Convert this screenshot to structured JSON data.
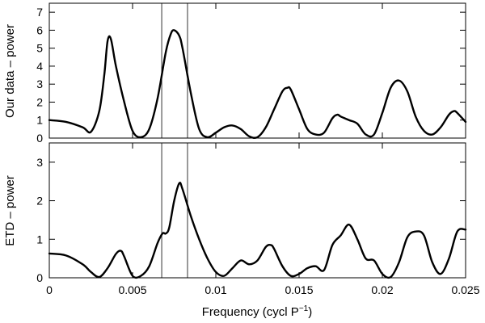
{
  "chart_data": [
    {
      "type": "line",
      "ylabel": "Our data – power",
      "xlim": [
        0,
        0.025
      ],
      "ylim": [
        0,
        7.5
      ],
      "yticks": [
        0,
        1,
        2,
        3,
        4,
        5,
        6,
        7
      ],
      "xticks": [
        0,
        0.005,
        0.01,
        0.015,
        0.02,
        0.025
      ],
      "vertical_lines": [
        0.00675,
        0.0083
      ],
      "grid": false,
      "series": [
        {
          "x": [
            0,
            0.001,
            0.002,
            0.0025,
            0.003,
            0.0033,
            0.0035,
            0.0037,
            0.004,
            0.0045,
            0.005,
            0.0055,
            0.006,
            0.0065,
            0.007,
            0.0073,
            0.0075,
            0.0078,
            0.008,
            0.0085,
            0.009,
            0.0095,
            0.01,
            0.0105,
            0.011,
            0.0115,
            0.012,
            0.0125,
            0.013,
            0.0135,
            0.014,
            0.0143,
            0.0145,
            0.015,
            0.0155,
            0.016,
            0.0165,
            0.017,
            0.0173,
            0.0175,
            0.018,
            0.0185,
            0.019,
            0.0195,
            0.02,
            0.0205,
            0.021,
            0.0215,
            0.022,
            0.0225,
            0.023,
            0.0235,
            0.024,
            0.0243,
            0.0245,
            0.025
          ],
          "y": [
            1.0,
            0.9,
            0.6,
            0.35,
            1.5,
            3.5,
            5.4,
            5.5,
            4.0,
            2.0,
            0.4,
            0.05,
            0.5,
            2.2,
            4.8,
            5.8,
            6.0,
            5.7,
            5.0,
            2.5,
            0.5,
            0.05,
            0.3,
            0.6,
            0.7,
            0.5,
            0.1,
            0.05,
            0.6,
            1.6,
            2.6,
            2.8,
            2.7,
            1.6,
            0.5,
            0.2,
            0.3,
            1.1,
            1.3,
            1.2,
            1.0,
            0.8,
            0.2,
            0.2,
            1.4,
            2.8,
            3.2,
            2.6,
            1.2,
            0.4,
            0.2,
            0.6,
            1.3,
            1.5,
            1.4,
            0.9
          ]
        }
      ]
    },
    {
      "type": "line",
      "ylabel": "ETD – power",
      "xlabel": "Frequency (cycl P",
      "xlabel_sup": "−1",
      "xlabel_end": ")",
      "xlim": [
        0,
        0.025
      ],
      "ylim": [
        0,
        3.5
      ],
      "yticks": [
        0,
        1,
        2,
        3
      ],
      "xticks": [
        0,
        0.005,
        0.01,
        0.015,
        0.02,
        0.025
      ],
      "xtick_labels": [
        "0",
        "0.005",
        "0.01",
        "0.015",
        "0.02",
        "0.025"
      ],
      "vertical_lines": [
        0.00675,
        0.0083
      ],
      "grid": false,
      "series": [
        {
          "x": [
            0,
            0.001,
            0.002,
            0.0025,
            0.003,
            0.0035,
            0.004,
            0.0043,
            0.0045,
            0.005,
            0.0055,
            0.006,
            0.0065,
            0.0068,
            0.007,
            0.0072,
            0.0075,
            0.0078,
            0.008,
            0.0085,
            0.009,
            0.0095,
            0.01,
            0.0105,
            0.011,
            0.0115,
            0.012,
            0.0125,
            0.013,
            0.0133,
            0.0135,
            0.014,
            0.0145,
            0.015,
            0.0155,
            0.016,
            0.0165,
            0.017,
            0.0175,
            0.018,
            0.0185,
            0.019,
            0.0195,
            0.02,
            0.0205,
            0.021,
            0.0215,
            0.022,
            0.0225,
            0.023,
            0.0235,
            0.024,
            0.0245,
            0.025
          ],
          "y": [
            0.63,
            0.58,
            0.35,
            0.15,
            0.02,
            0.25,
            0.62,
            0.7,
            0.55,
            0.05,
            0.05,
            0.3,
            0.9,
            1.15,
            1.15,
            1.3,
            2.0,
            2.45,
            2.3,
            1.6,
            1.0,
            0.5,
            0.15,
            0.05,
            0.25,
            0.45,
            0.35,
            0.45,
            0.8,
            0.85,
            0.75,
            0.3,
            0.05,
            0.1,
            0.25,
            0.3,
            0.2,
            0.85,
            1.1,
            1.38,
            1.0,
            0.5,
            0.45,
            0.1,
            0.02,
            0.4,
            1.05,
            1.2,
            1.1,
            0.4,
            0.1,
            0.5,
            1.2,
            1.25
          ]
        }
      ]
    }
  ]
}
